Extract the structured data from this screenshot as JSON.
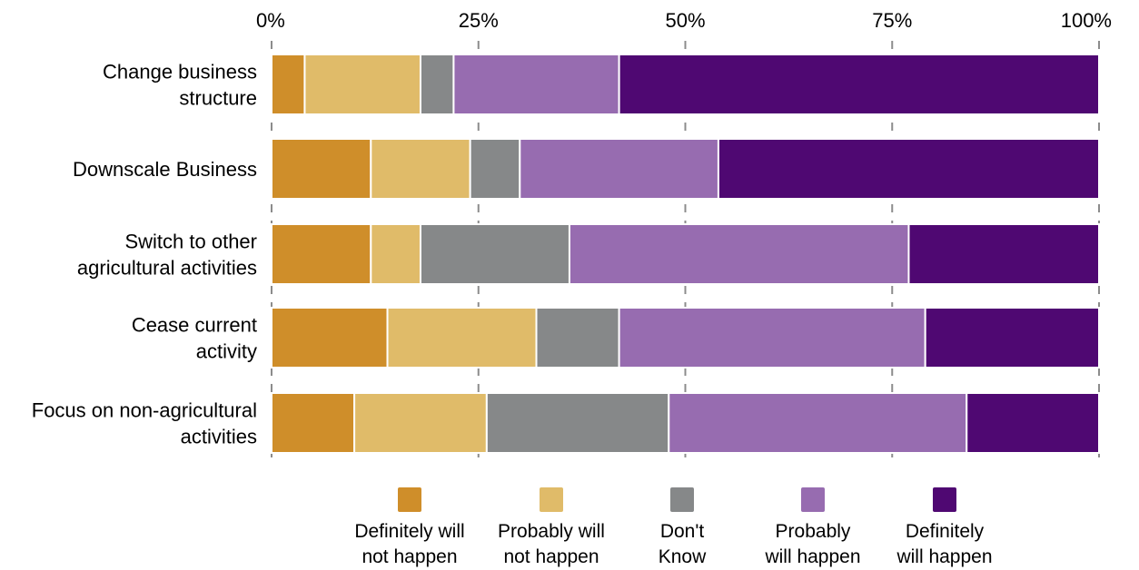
{
  "chart_data": {
    "type": "bar",
    "orientation": "horizontal",
    "stacked": true,
    "title": "",
    "xlabel": "",
    "ylabel": "",
    "xlim": [
      0,
      100
    ],
    "x_ticks": [
      0,
      25,
      50,
      75,
      100
    ],
    "x_tick_labels": [
      "0%",
      "25%",
      "50%",
      "75%",
      "100%"
    ],
    "x_axis_position": "top",
    "grid": true,
    "legend_position": "bottom",
    "categories": [
      "Change business\nstructure",
      "Downscale Business",
      "Switch to other\nagricultural activities",
      "Cease current\nactivity",
      "Focus on non-agricultural\nactivities"
    ],
    "series": [
      {
        "name": "Definitely will\nnot happen",
        "color": "#cf8e2a",
        "values": [
          4,
          12,
          12,
          14,
          10
        ]
      },
      {
        "name": "Probably will\nnot happen",
        "color": "#e0bb69",
        "values": [
          14,
          12,
          6,
          18,
          16
        ]
      },
      {
        "name": "Don't\nKnow",
        "color": "#868889",
        "values": [
          4,
          6,
          18,
          10,
          22
        ]
      },
      {
        "name": "Probably\nwill happen",
        "color": "#976cb0",
        "values": [
          20,
          24,
          41,
          37,
          36
        ]
      },
      {
        "name": "Definitely\nwill happen",
        "color": "#4f0872",
        "values": [
          58,
          46,
          23,
          21,
          16
        ]
      }
    ]
  }
}
